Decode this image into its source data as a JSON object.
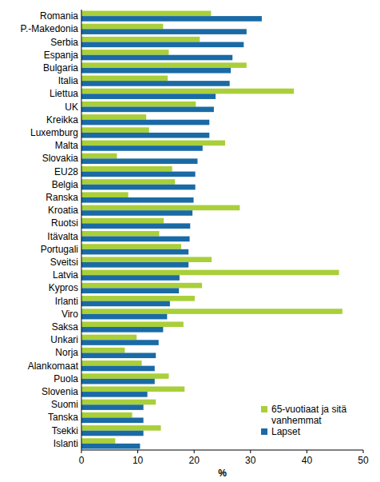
{
  "chart_data": {
    "type": "bar",
    "orientation": "horizontal",
    "x_label": "%",
    "categories": [
      "Romania",
      "P.-Makedonia",
      "Serbia",
      "Espanja",
      "Bulgaria",
      "Italia",
      "Liettua",
      "UK",
      "Kreikka",
      "Luxemburg",
      "Malta",
      "Slovakia",
      "EU28",
      "Belgia",
      "Ranska",
      "Kroatia",
      "Ruotsi",
      "Itävalta",
      "Portugali",
      "Sveitsi",
      "Latvia",
      "Kypros",
      "Irlanti",
      "Viro",
      "Saksa",
      "Unkari",
      "Norja",
      "Alankomaat",
      "Puola",
      "Slovenia",
      "Suomi",
      "Tanska",
      "Tsekki",
      "Islanti"
    ],
    "series": [
      {
        "name": "65-vuotiaat ja sitä vanhemmat",
        "color": "#a9cf3a",
        "values": [
          23,
          14.5,
          21,
          15.5,
          29.3,
          15.3,
          37.7,
          20.3,
          11.5,
          12,
          25.5,
          6.3,
          16.1,
          16.6,
          8.3,
          28.1,
          14.6,
          13.8,
          17.7,
          23.1,
          45.7,
          21.4,
          20.1,
          46.3,
          18.1,
          9.8,
          7.7,
          10.7,
          15.5,
          18.3,
          13.2,
          9,
          14.1,
          6
        ]
      },
      {
        "name": "Lapset",
        "color": "#1a6aa5",
        "values": [
          32,
          29.3,
          28.8,
          26.8,
          26.5,
          26.3,
          23.8,
          23.5,
          22.7,
          22.7,
          21.5,
          20.6,
          20.2,
          20.2,
          19.9,
          19.7,
          19.3,
          19.2,
          19,
          19,
          17.4,
          17.3,
          15.7,
          15.2,
          14.5,
          13.7,
          13.2,
          13,
          13,
          11.7,
          11,
          11,
          11,
          10.4
        ]
      }
    ],
    "xlim": [
      0,
      50
    ],
    "xticks": [
      0,
      10,
      20,
      30,
      40,
      50
    ],
    "grid": false,
    "legend": "bottom-right"
  }
}
